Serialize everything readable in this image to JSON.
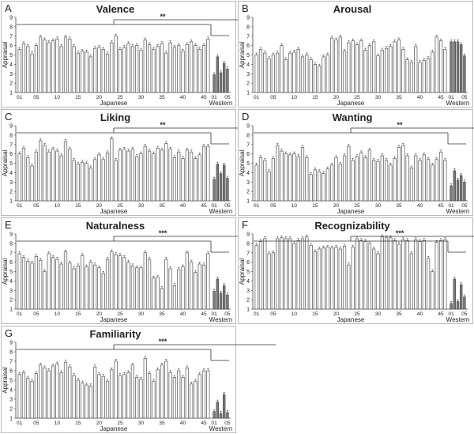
{
  "chart_data": [
    {
      "panel": "A",
      "title": "Valence",
      "type": "bar",
      "sig": "**",
      "ylabel": "Appraisal",
      "ylim": [
        1,
        9
      ],
      "y_ticks": [
        "1",
        "2",
        "3",
        "4",
        "5",
        "6",
        "7",
        "8",
        "9"
      ],
      "xlabel_japanese": "Japanese",
      "xlabel_western": "Western",
      "japanese_tick_labels": [
        "01",
        "05",
        "10",
        "15",
        "20",
        "25",
        "30",
        "35",
        "40",
        "45"
      ],
      "western_tick_labels": [
        "01",
        "05"
      ],
      "japanese_values": [
        5.6,
        6.2,
        5.9,
        5.1,
        6.0,
        6.9,
        6.6,
        6.3,
        6.5,
        6.7,
        5.9,
        6.9,
        6.7,
        5.9,
        5.2,
        5.4,
        5.3,
        4.8,
        5.7,
        5.8,
        5.6,
        5.1,
        6.3,
        7.0,
        5.6,
        5.8,
        6.2,
        5.9,
        6.0,
        5.5,
        6.6,
        6.1,
        5.6,
        5.9,
        6.2,
        5.2,
        6.3,
        5.8,
        6.0,
        5.4,
        6.1,
        6.4,
        6.0,
        5.6,
        6.0,
        6.7
      ],
      "western_values": [
        2.9,
        4.8,
        3.1,
        4.1,
        3.5
      ]
    },
    {
      "panel": "B",
      "title": "Arousal",
      "type": "bar",
      "sig": "",
      "ylabel": "Appraisal",
      "ylim": [
        1,
        9
      ],
      "y_ticks": [
        "1",
        "2",
        "3",
        "4",
        "5",
        "6",
        "7",
        "8",
        "9"
      ],
      "xlabel_japanese": "Japanese",
      "xlabel_western": "Western",
      "japanese_tick_labels": [
        "01",
        "05",
        "10",
        "15",
        "20",
        "25",
        "30",
        "35",
        "40",
        "45"
      ],
      "western_tick_labels": [
        "01",
        "05"
      ],
      "japanese_values": [
        5.0,
        5.6,
        5.2,
        4.6,
        5.0,
        5.2,
        6.0,
        4.5,
        5.2,
        5.3,
        5.6,
        4.8,
        5.0,
        4.5,
        4.0,
        3.8,
        4.8,
        5.0,
        6.8,
        6.6,
        6.9,
        5.4,
        6.3,
        6.5,
        6.1,
        6.5,
        5.5,
        6.0,
        6.4,
        4.9,
        5.5,
        5.7,
        5.9,
        6.4,
        6.6,
        5.6,
        4.5,
        4.2,
        5.9,
        4.2,
        4.4,
        4.6,
        5.3,
        6.9,
        6.5,
        5.6
      ],
      "western_values": [
        6.4,
        6.4,
        6.4,
        6.1,
        4.9
      ]
    },
    {
      "panel": "C",
      "title": "Liking",
      "type": "bar",
      "sig": "**",
      "ylabel": "Appraisal",
      "ylim": [
        1,
        9
      ],
      "y_ticks": [
        "1",
        "2",
        "3",
        "4",
        "5",
        "6",
        "7",
        "8",
        "9"
      ],
      "xlabel_japanese": "Japanese",
      "xlabel_western": "Western",
      "japanese_tick_labels": [
        "01",
        "05",
        "10",
        "15",
        "20",
        "25",
        "30",
        "35",
        "40",
        "45"
      ],
      "western_tick_labels": [
        "01",
        "05"
      ],
      "japanese_values": [
        6.0,
        6.6,
        5.6,
        4.7,
        6.2,
        7.4,
        6.9,
        6.2,
        6.5,
        6.3,
        5.8,
        7.3,
        6.5,
        5.3,
        4.9,
        5.1,
        5.0,
        4.5,
        5.4,
        5.9,
        5.4,
        6.1,
        7.6,
        5.3,
        6.4,
        6.5,
        6.3,
        6.5,
        5.7,
        6.0,
        6.8,
        6.3,
        6.0,
        6.6,
        6.4,
        7.1,
        6.5,
        5.6,
        6.2,
        5.5,
        6.4,
        6.2,
        5.5,
        5.9,
        6.8,
        6.8
      ],
      "western_values": [
        3.3,
        4.9,
        3.9,
        4.8,
        3.4
      ]
    },
    {
      "panel": "D",
      "title": "Wanting",
      "type": "bar",
      "sig": "**",
      "ylabel": "Appraisal",
      "ylim": [
        1,
        9
      ],
      "y_ticks": [
        "1",
        "2",
        "3",
        "4",
        "5",
        "6",
        "7",
        "8",
        "9"
      ],
      "xlabel_japanese": "Japanese",
      "xlabel_western": "Western",
      "japanese_tick_labels": [
        "01",
        "05",
        "10",
        "15",
        "20",
        "25",
        "30",
        "35",
        "40",
        "45"
      ],
      "western_tick_labels": [
        "01",
        "05"
      ],
      "japanese_values": [
        4.8,
        5.6,
        5.3,
        4.1,
        5.5,
        6.9,
        6.3,
        6.0,
        5.9,
        6.0,
        5.7,
        6.7,
        5.6,
        3.8,
        4.3,
        4.1,
        3.9,
        4.4,
        4.8,
        5.6,
        4.9,
        5.8,
        6.8,
        5.3,
        5.7,
        6.1,
        5.6,
        6.4,
        5.3,
        5.2,
        5.8,
        5.3,
        4.8,
        5.5,
        6.7,
        6.9,
        5.8,
        4.5,
        5.8,
        5.3,
        5.9,
        5.4,
        4.8,
        5.4,
        6.2,
        5.3
      ],
      "western_values": [
        2.6,
        4.2,
        3.2,
        3.7,
        3.0
      ]
    },
    {
      "panel": "E",
      "title": "Naturalness",
      "type": "bar",
      "sig": "***",
      "ylabel": "Appraisal",
      "ylim": [
        1,
        9
      ],
      "y_ticks": [
        "1",
        "2",
        "3",
        "4",
        "5",
        "6",
        "7",
        "8",
        "9"
      ],
      "xlabel_japanese": "Japanese",
      "xlabel_western": "Western",
      "japanese_tick_labels": [
        "01",
        "05",
        "10",
        "15",
        "20",
        "25",
        "30",
        "35",
        "40",
        "45"
      ],
      "western_tick_labels": [
        "01",
        "05"
      ],
      "japanese_values": [
        6.9,
        6.5,
        6.1,
        5.9,
        6.6,
        6.2,
        5.0,
        6.9,
        6.5,
        6.3,
        5.8,
        7.1,
        5.9,
        5.3,
        5.6,
        6.7,
        5.5,
        6.0,
        5.7,
        5.4,
        4.8,
        6.3,
        7.1,
        6.8,
        6.7,
        6.5,
        6.0,
        5.6,
        5.4,
        5.4,
        7.0,
        6.3,
        4.3,
        4.4,
        3.2,
        6.3,
        5.3,
        3.5,
        5.2,
        5.5,
        7.0,
        6.0,
        4.9,
        5.8,
        5.7,
        6.9
      ],
      "western_values": [
        2.9,
        4.2,
        2.7,
        3.5,
        2.5
      ]
    },
    {
      "panel": "F",
      "title": "Recognizability",
      "type": "bar",
      "sig": "***",
      "ylabel": "Appraisal",
      "ylim": [
        1,
        9
      ],
      "y_ticks": [
        "1",
        "2",
        "3",
        "4",
        "5",
        "6",
        "7",
        "8",
        "9"
      ],
      "xlabel_japanese": "Japanese",
      "xlabel_western": "Western",
      "japanese_tick_labels": [
        "01",
        "05",
        "10",
        "15",
        "20",
        "25",
        "30",
        "35",
        "40",
        "45"
      ],
      "western_tick_labels": [
        "01",
        "05"
      ],
      "japanese_values": [
        7.8,
        8.2,
        8.5,
        6.9,
        7.0,
        8.5,
        8.6,
        8.5,
        8.5,
        8.0,
        8.3,
        8.5,
        8.7,
        7.8,
        7.1,
        7.4,
        7.5,
        7.6,
        7.5,
        7.6,
        7.4,
        7.7,
        5.7,
        7.6,
        8.5,
        8.3,
        8.2,
        8.0,
        7.4,
        6.9,
        8.7,
        8.6,
        8.6,
        8.3,
        7.9,
        8.4,
        8.3,
        6.9,
        8.4,
        8.2,
        8.3,
        6.4,
        5.0,
        8.1,
        8.3,
        8.4
      ],
      "western_values": [
        1.6,
        4.2,
        1.8,
        3.6,
        2.3
      ]
    },
    {
      "panel": "G",
      "title": "Familiarity",
      "type": "bar",
      "sig": "***",
      "ylabel": "Appraisal",
      "ylim": [
        1,
        9
      ],
      "y_ticks": [
        "1",
        "2",
        "3",
        "4",
        "5",
        "6",
        "7",
        "8",
        "9"
      ],
      "xlabel_japanese": "Japanese",
      "xlabel_western": "Western",
      "japanese_tick_labels": [
        "01",
        "05",
        "10",
        "15",
        "20",
        "25",
        "30",
        "35",
        "40",
        "45"
      ],
      "western_tick_labels": [
        "01",
        "05"
      ],
      "japanese_values": [
        5.6,
        5.8,
        5.2,
        4.9,
        5.7,
        6.6,
        6.3,
        6.0,
        6.5,
        6.7,
        5.8,
        6.9,
        6.4,
        5.5,
        5.0,
        4.7,
        4.5,
        4.4,
        6.4,
        5.6,
        5.4,
        4.9,
        6.1,
        7.0,
        5.5,
        5.6,
        5.8,
        6.6,
        5.3,
        5.1,
        7.3,
        5.7,
        4.9,
        6.1,
        6.6,
        7.0,
        5.8,
        5.3,
        6.0,
        5.3,
        6.3,
        4.6,
        4.9,
        5.6,
        6.0,
        6.0
      ],
      "western_values": [
        1.7,
        2.7,
        1.5,
        3.5,
        1.6
      ]
    }
  ]
}
